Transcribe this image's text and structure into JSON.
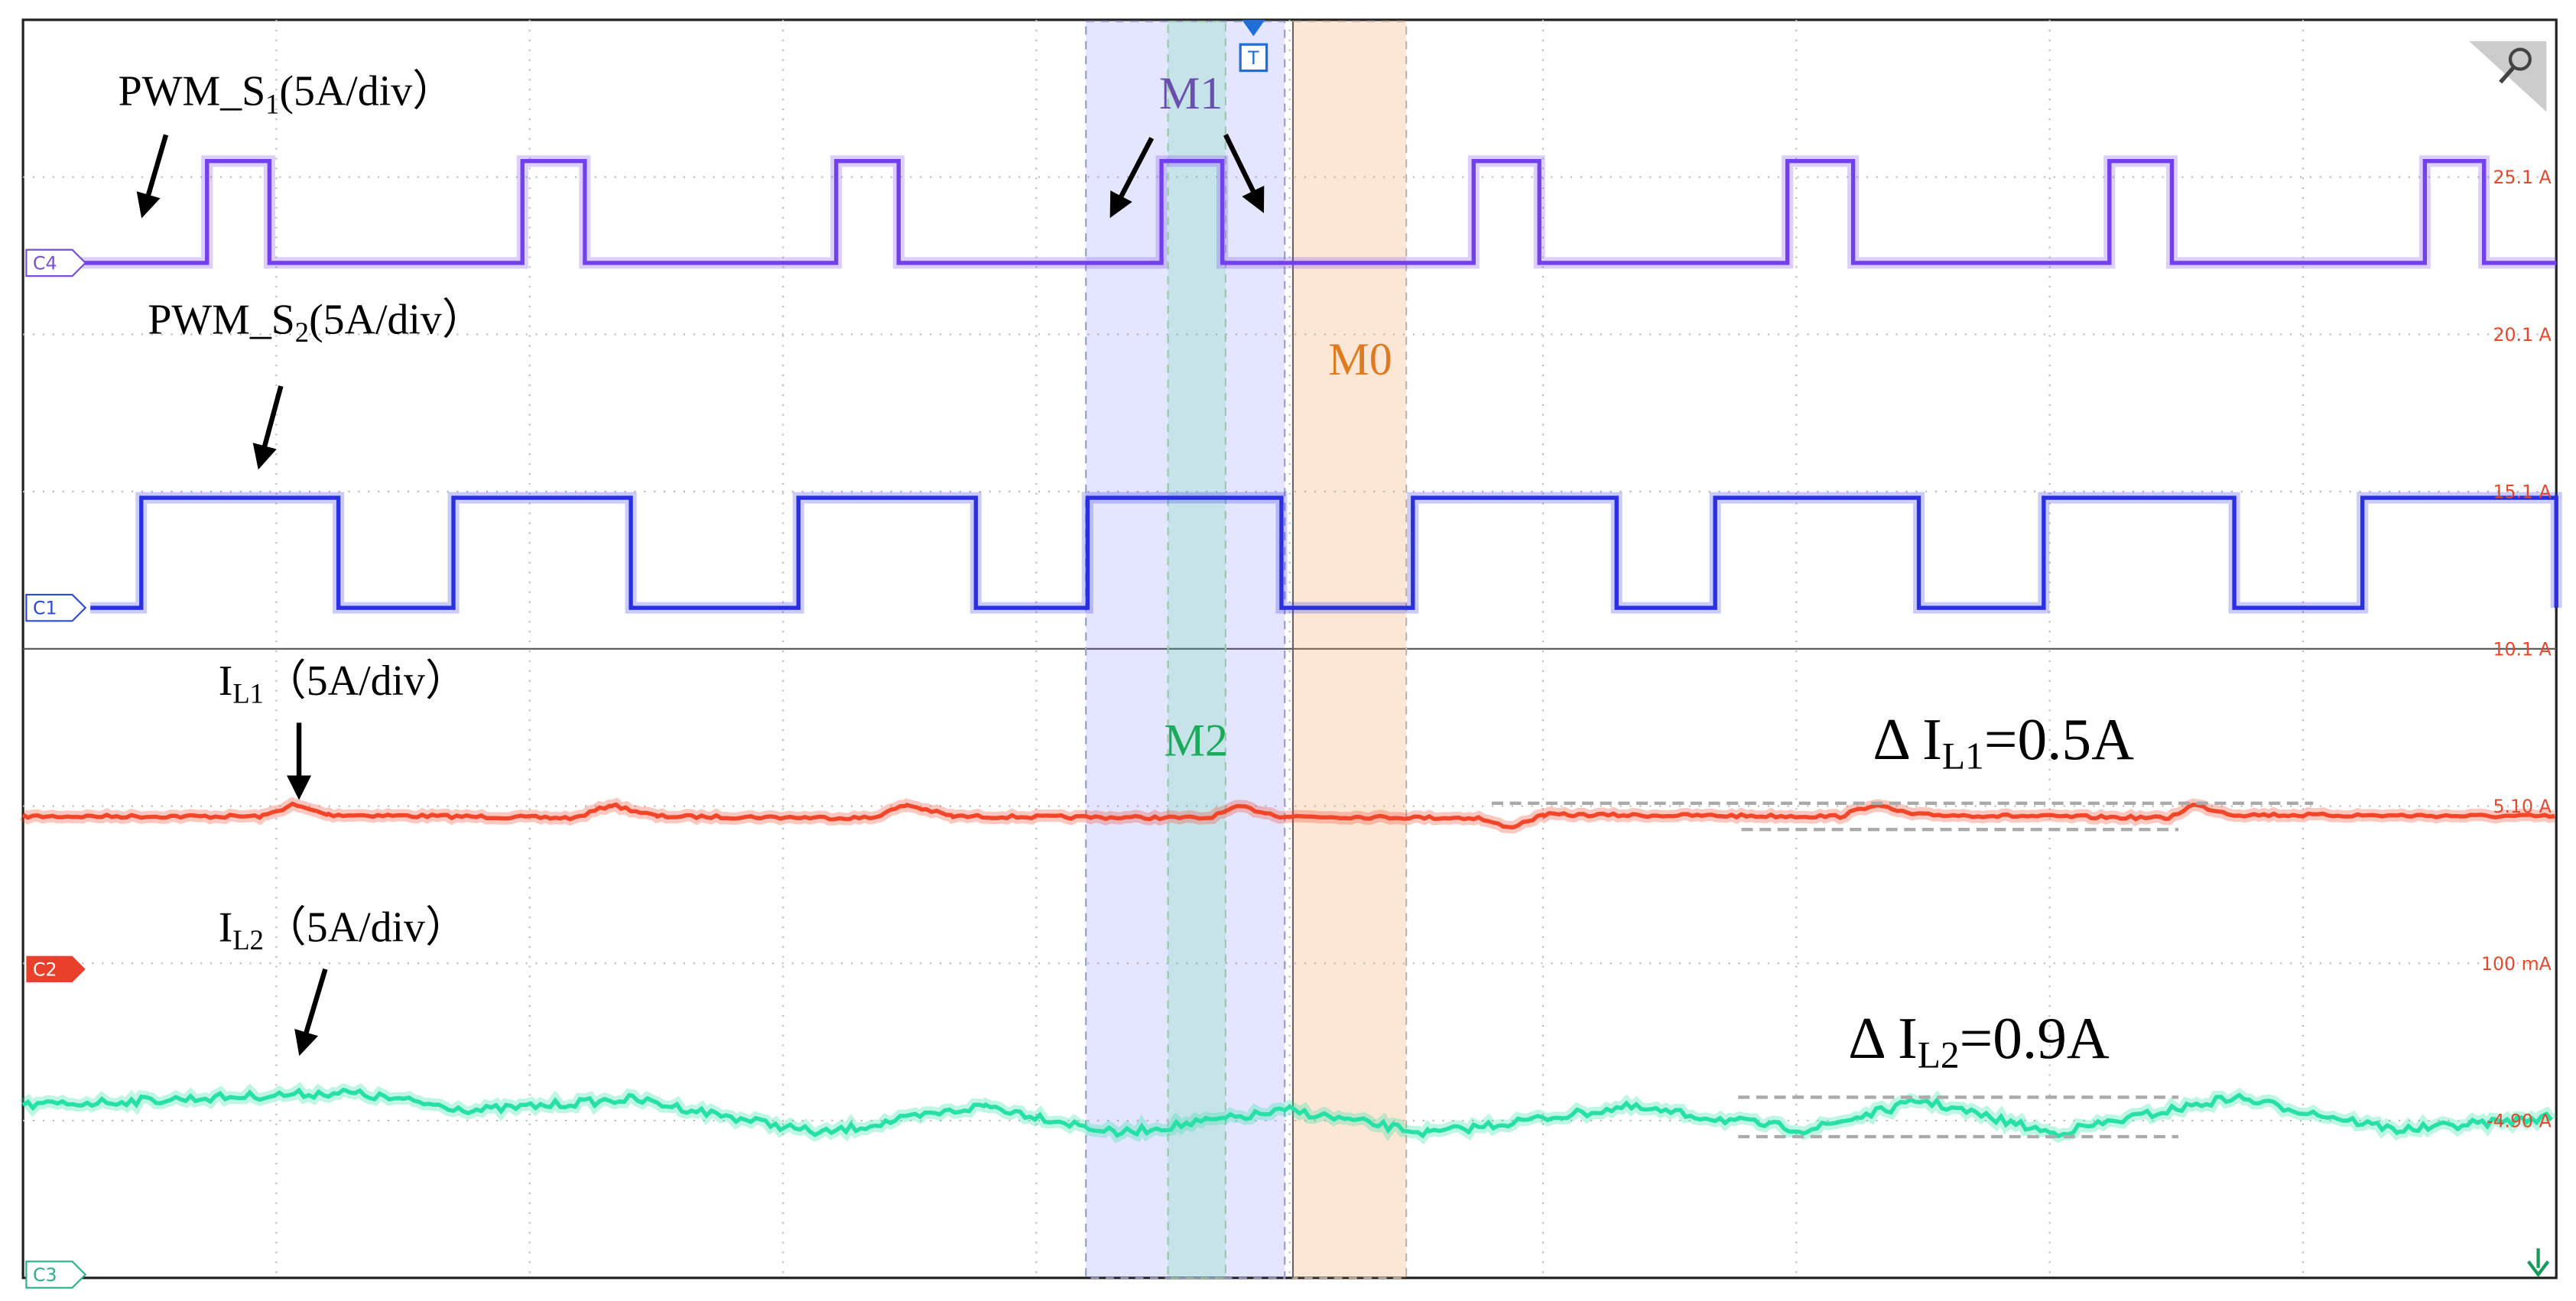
{
  "annotations": {
    "pwm_s1": {
      "main": "PWM_S",
      "sub": "1",
      "rest": "(5A/div）"
    },
    "pwm_s2": {
      "main": "PWM_S",
      "sub": "2",
      "rest": "(5A/div）"
    },
    "il1": {
      "main": "I",
      "sub": "L1",
      "rest": "（5A/div）"
    },
    "il2": {
      "main": "I",
      "sub": "L2",
      "rest": "（5A/div）"
    },
    "delta_il1": {
      "main": "Δ I",
      "sub": "L1",
      "rest": "=0.5A"
    },
    "delta_il2": {
      "main": "Δ I",
      "sub": "L2",
      "rest": "=0.9A"
    }
  },
  "markers": {
    "m1": "M1",
    "m2": "M2",
    "m0": "M0"
  },
  "channels": {
    "c4": "C4",
    "c1": "C1",
    "c2": "C2",
    "c3": "C3"
  },
  "trigger": "T",
  "scale_labels": [
    "25.1 A",
    "20.1 A",
    "15.1 A",
    "10.1 A",
    "5.10 A",
    "100 mA",
    "-4.90 A"
  ]
}
